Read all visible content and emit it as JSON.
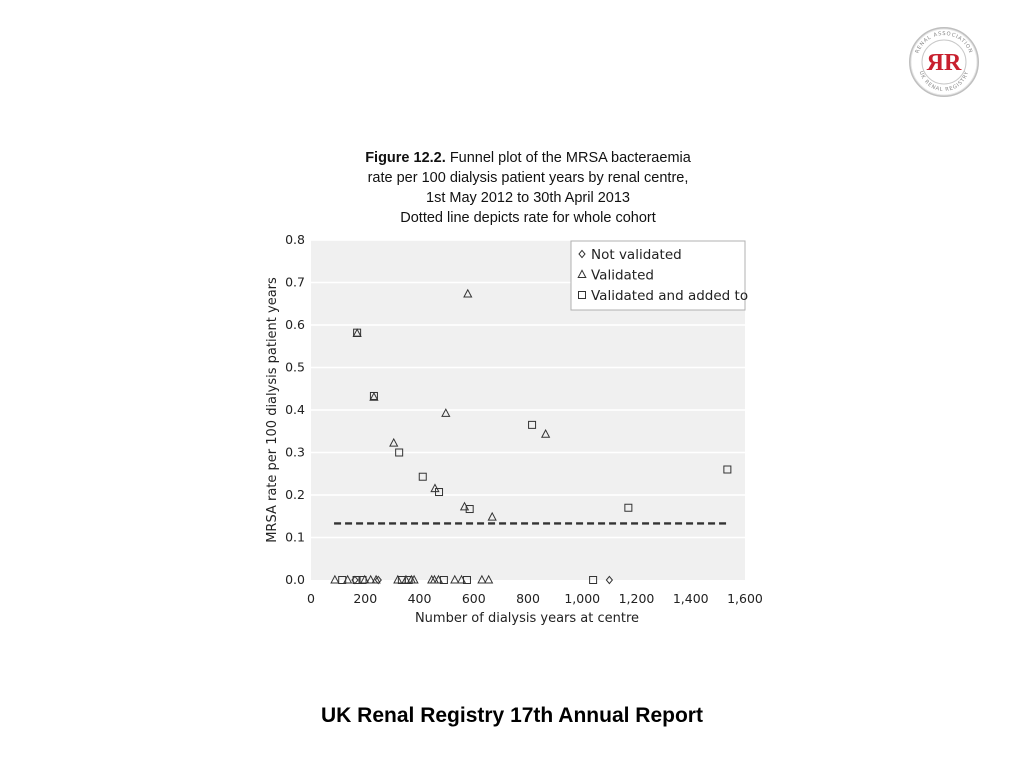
{
  "caption": {
    "figure_label": "Figure 12.2.",
    "line1_rest": "Funnel plot of the MRSA bacteraemia",
    "line2": "rate per 100 dialysis patient years by renal centre,",
    "line3": "1st May 2012 to 30th April 2013",
    "line4": "Dotted line depicts rate for whole cohort"
  },
  "footer": {
    "title": "UK Renal Registry 17th Annual Report"
  },
  "logo": {
    "monogram": "ЯR",
    "ring_text_top": "RENAL ASSOCIATION",
    "ring_text_bottom": "UK RENAL REGISTRY",
    "color": "#c8202e"
  },
  "chart_data": {
    "type": "scatter",
    "xlabel": "Number of dialysis years at centre",
    "ylabel": "MRSA rate per 100 dialysis patient years",
    "xlim": [
      0,
      1600
    ],
    "ylim": [
      0,
      0.8
    ],
    "x_ticks": [
      "0",
      "200",
      "400",
      "600",
      "800",
      "1,000",
      "1,200",
      "1,400",
      "1,600"
    ],
    "x_tick_values": [
      0,
      200,
      400,
      600,
      800,
      1000,
      1200,
      1400,
      1600
    ],
    "y_ticks": [
      "0.0",
      "0.1",
      "0.2",
      "0.3",
      "0.4",
      "0.5",
      "0.6",
      "0.7",
      "0.8"
    ],
    "y_tick_values": [
      0,
      0.1,
      0.2,
      0.3,
      0.4,
      0.5,
      0.6,
      0.7,
      0.8
    ],
    "grid": true,
    "legend_position": "top-right",
    "reference_line": {
      "style": "dashed",
      "y": 0.133,
      "x_range": [
        85,
        1535
      ]
    },
    "series": [
      {
        "name": "Not validated",
        "marker": "diamond",
        "points": [
          [
            162,
            0
          ],
          [
            248,
            0
          ],
          [
            1100,
            0
          ]
        ]
      },
      {
        "name": "Validated",
        "marker": "triangle",
        "points": [
          [
            578,
            0.673
          ],
          [
            497,
            0.392
          ],
          [
            305,
            0.322
          ],
          [
            865,
            0.343
          ],
          [
            170,
            0.58
          ],
          [
            232,
            0.43
          ],
          [
            457,
            0.215
          ],
          [
            566,
            0.172
          ],
          [
            668,
            0.148
          ],
          [
            88,
            0
          ],
          [
            135,
            0
          ],
          [
            198,
            0
          ],
          [
            220,
            0
          ],
          [
            240,
            0
          ],
          [
            320,
            0
          ],
          [
            350,
            0
          ],
          [
            370,
            0
          ],
          [
            380,
            0
          ],
          [
            445,
            0
          ],
          [
            455,
            0
          ],
          [
            470,
            0
          ],
          [
            530,
            0
          ],
          [
            555,
            0
          ],
          [
            630,
            0
          ],
          [
            655,
            0
          ]
        ]
      },
      {
        "name": "Validated and added to",
        "marker": "square",
        "points": [
          [
            170,
            0.582
          ],
          [
            232,
            0.433
          ],
          [
            325,
            0.3
          ],
          [
            412,
            0.243
          ],
          [
            472,
            0.207
          ],
          [
            585,
            0.167
          ],
          [
            815,
            0.365
          ],
          [
            1170,
            0.17
          ],
          [
            1535,
            0.26
          ],
          [
            115,
            0
          ],
          [
            168,
            0
          ],
          [
            190,
            0
          ],
          [
            335,
            0
          ],
          [
            360,
            0
          ],
          [
            490,
            0
          ],
          [
            575,
            0
          ],
          [
            1040,
            0
          ]
        ]
      }
    ]
  }
}
